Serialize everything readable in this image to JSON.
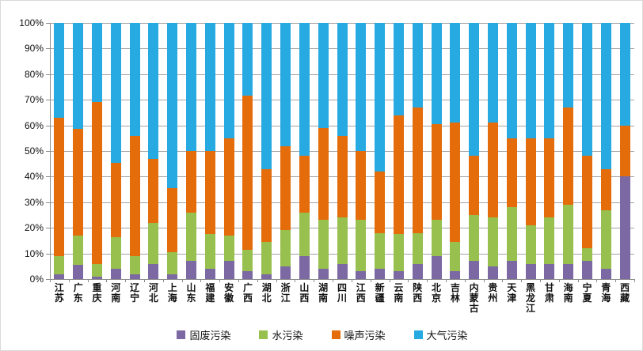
{
  "chart_data": {
    "type": "bar",
    "stacked": true,
    "percent": true,
    "title": "",
    "xlabel": "",
    "ylabel": "",
    "ylim": [
      0,
      100
    ],
    "grid": true,
    "legend_position": "bottom",
    "y_ticks": [
      "0%",
      "10%",
      "20%",
      "30%",
      "40%",
      "50%",
      "60%",
      "70%",
      "80%",
      "90%",
      "100%"
    ],
    "categories": [
      "江苏",
      "广东",
      "重庆",
      "河南",
      "辽宁",
      "河北",
      "上海",
      "山东",
      "福建",
      "安徽",
      "广西",
      "湖北",
      "浙江",
      "山西",
      "湖南",
      "四川",
      "江西",
      "新疆",
      "云南",
      "陕西",
      "北京",
      "吉林",
      "内蒙古",
      "贵州",
      "天津",
      "黑龙江",
      "甘肃",
      "海南",
      "宁夏",
      "青海",
      "西藏"
    ],
    "series": [
      {
        "name": "固废污染",
        "color": "#7C68A2",
        "values": [
          2,
          5.5,
          1,
          4,
          2,
          6,
          2,
          7,
          4,
          7,
          3,
          2,
          5,
          9,
          4,
          6,
          3,
          4,
          3,
          6,
          9,
          3,
          7,
          5,
          7,
          6,
          6,
          6,
          7,
          4,
          40
        ]
      },
      {
        "name": "水污染",
        "color": "#97C04E",
        "values": [
          7,
          11.5,
          5,
          12.5,
          7,
          16,
          8.5,
          19,
          13.5,
          10,
          8.5,
          12.5,
          14,
          17,
          19,
          18,
          20,
          14,
          14.5,
          12,
          14,
          11.5,
          18,
          19,
          21,
          15,
          18,
          23,
          5,
          23,
          0
        ]
      },
      {
        "name": "噪声污染",
        "color": "#E46C0A",
        "values": [
          54,
          41.5,
          63,
          29,
          47,
          25,
          25,
          24,
          32.5,
          38,
          60,
          28.5,
          33,
          22,
          36,
          32,
          27,
          24,
          46.5,
          49,
          37.5,
          46.5,
          23,
          37,
          27,
          34,
          31,
          38,
          36,
          16,
          20
        ]
      },
      {
        "name": "大气污染",
        "color": "#27AAE1",
        "values": [
          37,
          41.5,
          31,
          54.5,
          44,
          53,
          64.5,
          50,
          50,
          45,
          28.5,
          57,
          48,
          52,
          41,
          44,
          50,
          58,
          36,
          33,
          39.5,
          39,
          52,
          39,
          45,
          45,
          45,
          33,
          52,
          57,
          40
        ]
      }
    ]
  }
}
